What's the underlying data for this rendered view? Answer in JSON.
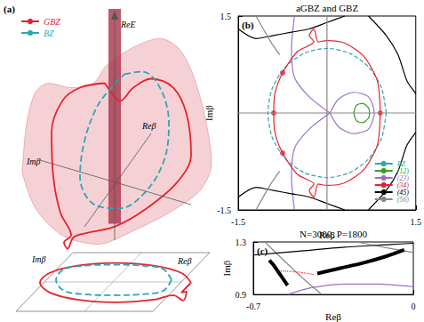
{
  "chart_data": [
    {
      "type": "line",
      "tick_labels": false,
      "grid": false,
      "legend": "upper left",
      "xlim": [
        0,
        24
      ],
      "ylim": [
        0,
        36
      ],
      "annotations": [
        "(a)",
        "ReE",
        "Imβ",
        "Reβ",
        "Imβ",
        "Reβ"
      ],
      "series": [
        {
          "type": "area",
          "color": "#f2c2c8",
          "x": [
            2.5,
            3.0,
            4.0,
            5.5,
            8.0,
            10.5,
            12.0,
            15.0,
            18.0,
            20.0,
            21.5,
            23.0,
            23.8,
            22.5,
            19.0,
            15.0,
            11.0,
            7.0,
            4.0,
            2.5
          ],
          "values": [
            16.7,
            22.2,
            25.7,
            26.7,
            26.2,
            26.7,
            28.7,
            30.7,
            31.7,
            30.7,
            28.2,
            23.2,
            17.7,
            14.7,
            12.2,
            10.2,
            8.7,
            9.7,
            12.7,
            16.7
          ]
        },
        {
          "type": "band",
          "color": "#a8334a",
          "x": [
            12.9,
            12.9
          ],
          "values": [
            35.0,
            11.0
          ]
        },
        {
          "name": "GBZ",
          "color": "#e8222a",
          "line_style": "solid",
          "x": [
            11.8,
            9.0,
            7.0,
            5.8,
            6.0,
            6.8,
            8.0,
            7.2,
            7.6,
            8.3,
            10.0,
            13.0,
            16.5,
            20.0,
            21.5,
            21.0,
            19.5,
            17.0,
            15.0,
            13.5,
            12.5,
            11.8
          ],
          "values": [
            26.7,
            26.2,
            24.7,
            21.2,
            16.2,
            12.2,
            9.7,
            8.9,
            8.2,
            9.5,
            10.0,
            10.7,
            12.7,
            15.7,
            18.7,
            23.2,
            26.2,
            27.2,
            26.2,
            24.7,
            25.7,
            26.7
          ]
        },
        {
          "name": "BZ",
          "color": "#2aa7b0",
          "line_style": "dashed",
          "x": [
            14.0,
            16.0,
            18.0,
            19.0,
            18.5,
            16.5,
            13.5,
            10.5,
            9.0,
            9.5,
            11.0,
            13.0,
            14.0
          ],
          "values": [
            27.7,
            28.0,
            26.2,
            22.2,
            18.2,
            14.7,
            12.7,
            13.2,
            16.2,
            20.2,
            24.2,
            26.7,
            27.7
          ]
        },
        {
          "color": "#e8222a",
          "line_style": "solid",
          "x": [
            21.5,
            20.4,
            17.3,
            13.0,
            8.7,
            5.6,
            4.5,
            5.6,
            8.7,
            13.0,
            17.3,
            19.5,
            20.6,
            21.0,
            20.4,
            21.5
          ],
          "values": [
            4.4,
            5.5,
            6.3,
            6.6,
            6.3,
            5.5,
            4.4,
            3.3,
            2.5,
            2.2,
            2.5,
            3.0,
            2.4,
            3.4,
            3.3,
            4.4
          ]
        },
        {
          "color": "#2aa7b0",
          "line_style": "dashed",
          "x": [
            19.3,
            18.4,
            16.0,
            12.8,
            9.6,
            7.2,
            6.3,
            7.2,
            9.6,
            12.8,
            16.0,
            18.4,
            19.3
          ],
          "values": [
            4.7,
            5.9,
            6.3,
            6.4,
            6.3,
            5.9,
            4.7,
            3.5,
            3.1,
            3.0,
            3.1,
            3.5,
            4.7
          ]
        }
      ]
    },
    {
      "type": "line",
      "title": "aGBZ and GBZ",
      "xlabel": "Reβ",
      "ylabel": "Imβ",
      "grid": false,
      "legend": "lower right",
      "xlim": [
        -1.5,
        1.5
      ],
      "ylim": [
        -1.5,
        1.5
      ],
      "xticks": [
        -1.5,
        1.5
      ],
      "yticks": [
        -1.5,
        1.5
      ],
      "annotations": [
        "(b)"
      ],
      "series": [
        {
          "name": "BZ",
          "color": "#2aa7b0",
          "line_style": "dashed",
          "x": [
            1,
            0.924,
            0.707,
            0.383,
            0,
            -0.383,
            -0.707,
            -0.924,
            -1,
            -0.924,
            -0.707,
            -0.383,
            0,
            0.383,
            0.707,
            0.924,
            1
          ],
          "values": [
            0,
            0.383,
            0.707,
            0.924,
            1,
            0.924,
            0.707,
            0.383,
            0,
            -0.383,
            -0.707,
            -0.924,
            -1,
            -0.924,
            -0.707,
            -0.383,
            0
          ]
        },
        {
          "name": "(12)",
          "color": "#3a9d23",
          "line_style": "solid",
          "x": [
            0.45,
            0.5,
            0.6,
            0.7,
            0.72,
            0.7,
            0.6,
            0.5,
            0.45
          ],
          "values": [
            0,
            0.12,
            0.15,
            0.08,
            0,
            -0.08,
            -0.15,
            -0.12,
            0
          ]
        },
        {
          "name": "(23)",
          "color": "#9b6fc8",
          "line_style": "solid",
          "x": [
            0.05,
            0.2,
            0.45,
            0.7,
            0.8,
            0.7,
            0.45,
            0.2,
            0.05,
            null,
            -0.55,
            -0.6,
            -0.55,
            -0.3,
            0.05,
            null,
            -0.55,
            -0.6,
            -0.55,
            -0.3,
            0.05
          ],
          "values": [
            0,
            0.22,
            0.32,
            0.25,
            0,
            -0.25,
            -0.32,
            -0.22,
            0,
            null,
            1.5,
            1.0,
            0.55,
            0.25,
            0,
            null,
            -1.5,
            -1.0,
            -0.55,
            -0.25,
            0
          ]
        },
        {
          "name": "(34)",
          "color": "#e8222a",
          "line_style": "solid",
          "x": [
            0.9,
            0.85,
            0.62,
            0.3,
            0.0,
            -0.15,
            -0.22,
            -0.3,
            -0.22,
            -0.5,
            -0.75,
            -0.88,
            -0.9,
            -0.88,
            -0.75,
            -0.5,
            -0.22,
            -0.3,
            -0.22,
            -0.15,
            0.0,
            0.3,
            0.62,
            0.85,
            0.9
          ],
          "values": [
            0,
            0.5,
            0.88,
            1.08,
            1.12,
            1.1,
            1.3,
            1.2,
            1.1,
            0.95,
            0.62,
            0.3,
            0,
            -0.3,
            -0.62,
            -0.95,
            -1.1,
            -1.2,
            -1.3,
            -1.1,
            -1.12,
            -1.08,
            -0.88,
            -0.5,
            0
          ]
        },
        {
          "name": "(45)",
          "color": "#000000",
          "line_style": "solid",
          "x": [
            -1.5,
            -1.2,
            -0.9,
            -0.6,
            -0.3,
            0.0,
            0.3,
            null,
            0.7,
            1.0,
            1.2,
            1.35,
            1.5,
            null,
            -1.5,
            -1.2,
            -0.9,
            -0.6,
            -0.3,
            0.0,
            0.3,
            null,
            0.7,
            1.0,
            1.2,
            1.35,
            1.5
          ],
          "values": [
            1.3,
            1.15,
            1.2,
            1.25,
            1.3,
            1.4,
            1.5,
            null,
            1.5,
            1.2,
            0.9,
            0.5,
            0.3,
            null,
            -1.3,
            -1.15,
            -1.2,
            -1.25,
            -1.3,
            -1.4,
            -1.5,
            null,
            -1.5,
            -1.2,
            -0.9,
            -0.5,
            -0.3
          ]
        },
        {
          "name": "(56)",
          "color": "#888888",
          "line_style": "solid",
          "x": [
            -1.5,
            1.5,
            null,
            0,
            0,
            null,
            -1.2,
            -0.95,
            -0.8,
            null,
            -1.2,
            -0.95,
            -0.8
          ],
          "values": [
            0,
            0,
            null,
            -1.5,
            1.5,
            null,
            1.5,
            1.1,
            0.9,
            null,
            -1.5,
            -1.1,
            -0.9
          ]
        },
        {
          "type": "scatter",
          "marker": "circle",
          "color": "#e8222a",
          "x": [
            0.9,
            -0.9,
            -0.75,
            -0.75
          ],
          "values": [
            0,
            0,
            0.62,
            -0.62
          ]
        }
      ]
    },
    {
      "type": "line",
      "title": "N=3000, P=1800",
      "xlabel": "Reβ",
      "ylabel": "Imβ",
      "grid": false,
      "xlim": [
        -0.7,
        0
      ],
      "ylim": [
        0.9,
        1.3
      ],
      "xticks": [
        -0.7,
        0
      ],
      "yticks": [
        0.9,
        1.3
      ],
      "annotations": [
        "(c)"
      ],
      "series": [
        {
          "color": "#888888",
          "line_style": "solid",
          "x": [
            -0.65,
            -0.5,
            -0.4,
            null,
            -0.25,
            -0.1,
            0
          ],
          "values": [
            1.3,
            1.05,
            0.9,
            null,
            1.3,
            1.25,
            1.22
          ]
        },
        {
          "color": "#9b6fc8",
          "line_style": "solid",
          "x": [
            -0.55,
            -0.45,
            -0.3,
            -0.15,
            0
          ],
          "values": [
            0.9,
            0.95,
            0.98,
            0.98,
            0.96
          ]
        },
        {
          "color": "#000000",
          "line_style": "solid",
          "x": [
            -0.7,
            -0.5,
            -0.3,
            -0.1,
            0
          ],
          "values": [
            1.2,
            1.23,
            1.26,
            1.28,
            1.29
          ]
        },
        {
          "color": "#000000",
          "line_style": "thick",
          "x": [
            -0.63,
            -0.61,
            -0.59,
            -0.57,
            -0.55,
            null,
            -0.42,
            -0.32,
            -0.22,
            -0.12,
            -0.04
          ],
          "values": [
            1.16,
            1.12,
            1.07,
            1.02,
            0.97,
            null,
            1.06,
            1.1,
            1.14,
            1.19,
            1.24
          ]
        },
        {
          "color": "#e8222a",
          "line_style": "dotted",
          "x": [
            -0.58,
            -0.5,
            -0.43
          ],
          "values": [
            1.08,
            1.07,
            1.05
          ]
        }
      ]
    }
  ]
}
